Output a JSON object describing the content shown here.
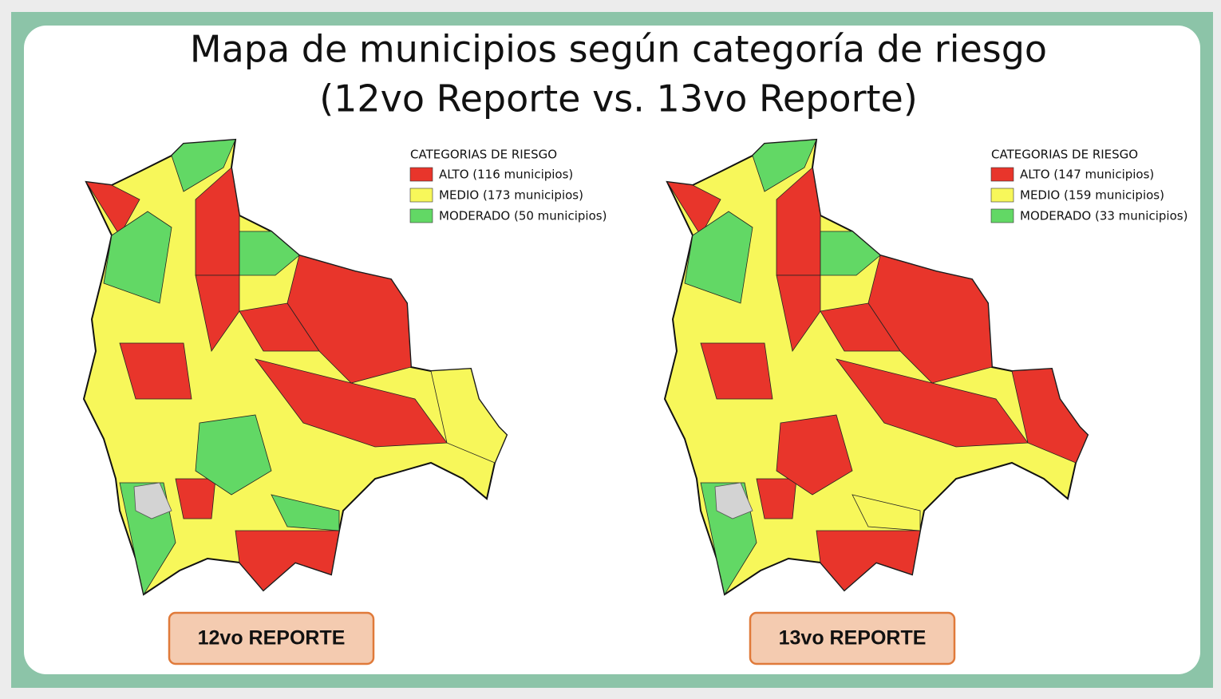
{
  "title": [
    "Mapa de municipios según categoría de riesgo",
    "(12vo Reporte vs. 13vo Reporte)"
  ],
  "maps": [
    {
      "legend_title": "CATEGORIAS DE RIESGO",
      "legend": [
        {
          "label": "ALTO (116 municipios)",
          "color": "#e8352b"
        },
        {
          "label": "MEDIO (173 municipios)",
          "color": "#f7f75a"
        },
        {
          "label": "MODERADO (50 municipios)",
          "color": "#62d865"
        }
      ],
      "label": "12vo REPORTE"
    },
    {
      "legend_title": "CATEGORIAS DE RIESGO",
      "legend": [
        {
          "label": "ALTO (147 municipios)",
          "color": "#e8352b"
        },
        {
          "label": "MEDIO (159 municipios)",
          "color": "#f7f75a"
        },
        {
          "label": "MODERADO (33 municipios)",
          "color": "#62d865"
        }
      ],
      "label": "13vo REPORTE"
    }
  ]
}
